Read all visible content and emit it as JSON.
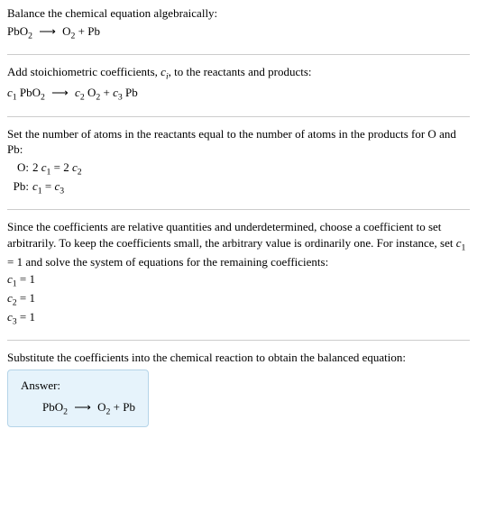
{
  "colors": {
    "text": "#000000",
    "bg": "#ffffff",
    "divider": "#cccccc",
    "answer_bg": "#e6f3fb",
    "answer_border": "#b5d4e8"
  },
  "typography": {
    "body_fontsize": 13,
    "sub_scale": 0.75,
    "line_height": 1.35,
    "font_family": "Georgia, 'Times New Roman', serif"
  },
  "s1": {
    "title": "Balance the chemical equation algebraically:",
    "lhs": "PbO",
    "lhs_sub": "2",
    "arrow": "⟶",
    "rhs_a": "O",
    "rhs_a_sub": "2",
    "plus": " + ",
    "rhs_b": "Pb"
  },
  "s2": {
    "title_a": "Add stoichiometric coefficients, ",
    "ci": "c",
    "ci_sub": "i",
    "title_b": ", to the reactants and products:",
    "c1": "c",
    "c1_sub": "1",
    "sp1": " PbO",
    "sp1_sub": "2",
    "arrow": "⟶",
    "c2": "c",
    "c2_sub": "2",
    "sp2": " O",
    "sp2_sub": "2",
    "plus": " + ",
    "c3": "c",
    "c3_sub": "3",
    "sp3": " Pb"
  },
  "s3": {
    "title": "Set the number of atoms in the reactants equal to the number of atoms in the products for O and Pb:",
    "rows": [
      {
        "label": "O:",
        "lhs_a": "2 ",
        "lhs_c": "c",
        "lhs_sub": "1",
        "eq": " = ",
        "rhs_a": "2 ",
        "rhs_c": "c",
        "rhs_sub": "2"
      },
      {
        "label": "Pb:",
        "lhs_a": "",
        "lhs_c": "c",
        "lhs_sub": "1",
        "eq": " = ",
        "rhs_a": "",
        "rhs_c": "c",
        "rhs_sub": "3"
      }
    ]
  },
  "s4": {
    "title_a": "Since the coefficients are relative quantities and underdetermined, choose a coefficient to set arbitrarily. To keep the coefficients small, the arbitrary value is ordinarily one. For instance, set ",
    "cset": "c",
    "cset_sub": "1",
    "title_b": " = 1 and solve the system of equations for the remaining coefficients:",
    "lines": [
      {
        "c": "c",
        "sub": "1",
        "eq": " = 1"
      },
      {
        "c": "c",
        "sub": "2",
        "eq": " = 1"
      },
      {
        "c": "c",
        "sub": "3",
        "eq": " = 1"
      }
    ]
  },
  "s5": {
    "title": "Substitute the coefficients into the chemical reaction to obtain the balanced equation:",
    "answer_label": "Answer:",
    "lhs": "PbO",
    "lhs_sub": "2",
    "arrow": "⟶",
    "rhs_a": "O",
    "rhs_a_sub": "2",
    "plus": " + ",
    "rhs_b": "Pb"
  }
}
